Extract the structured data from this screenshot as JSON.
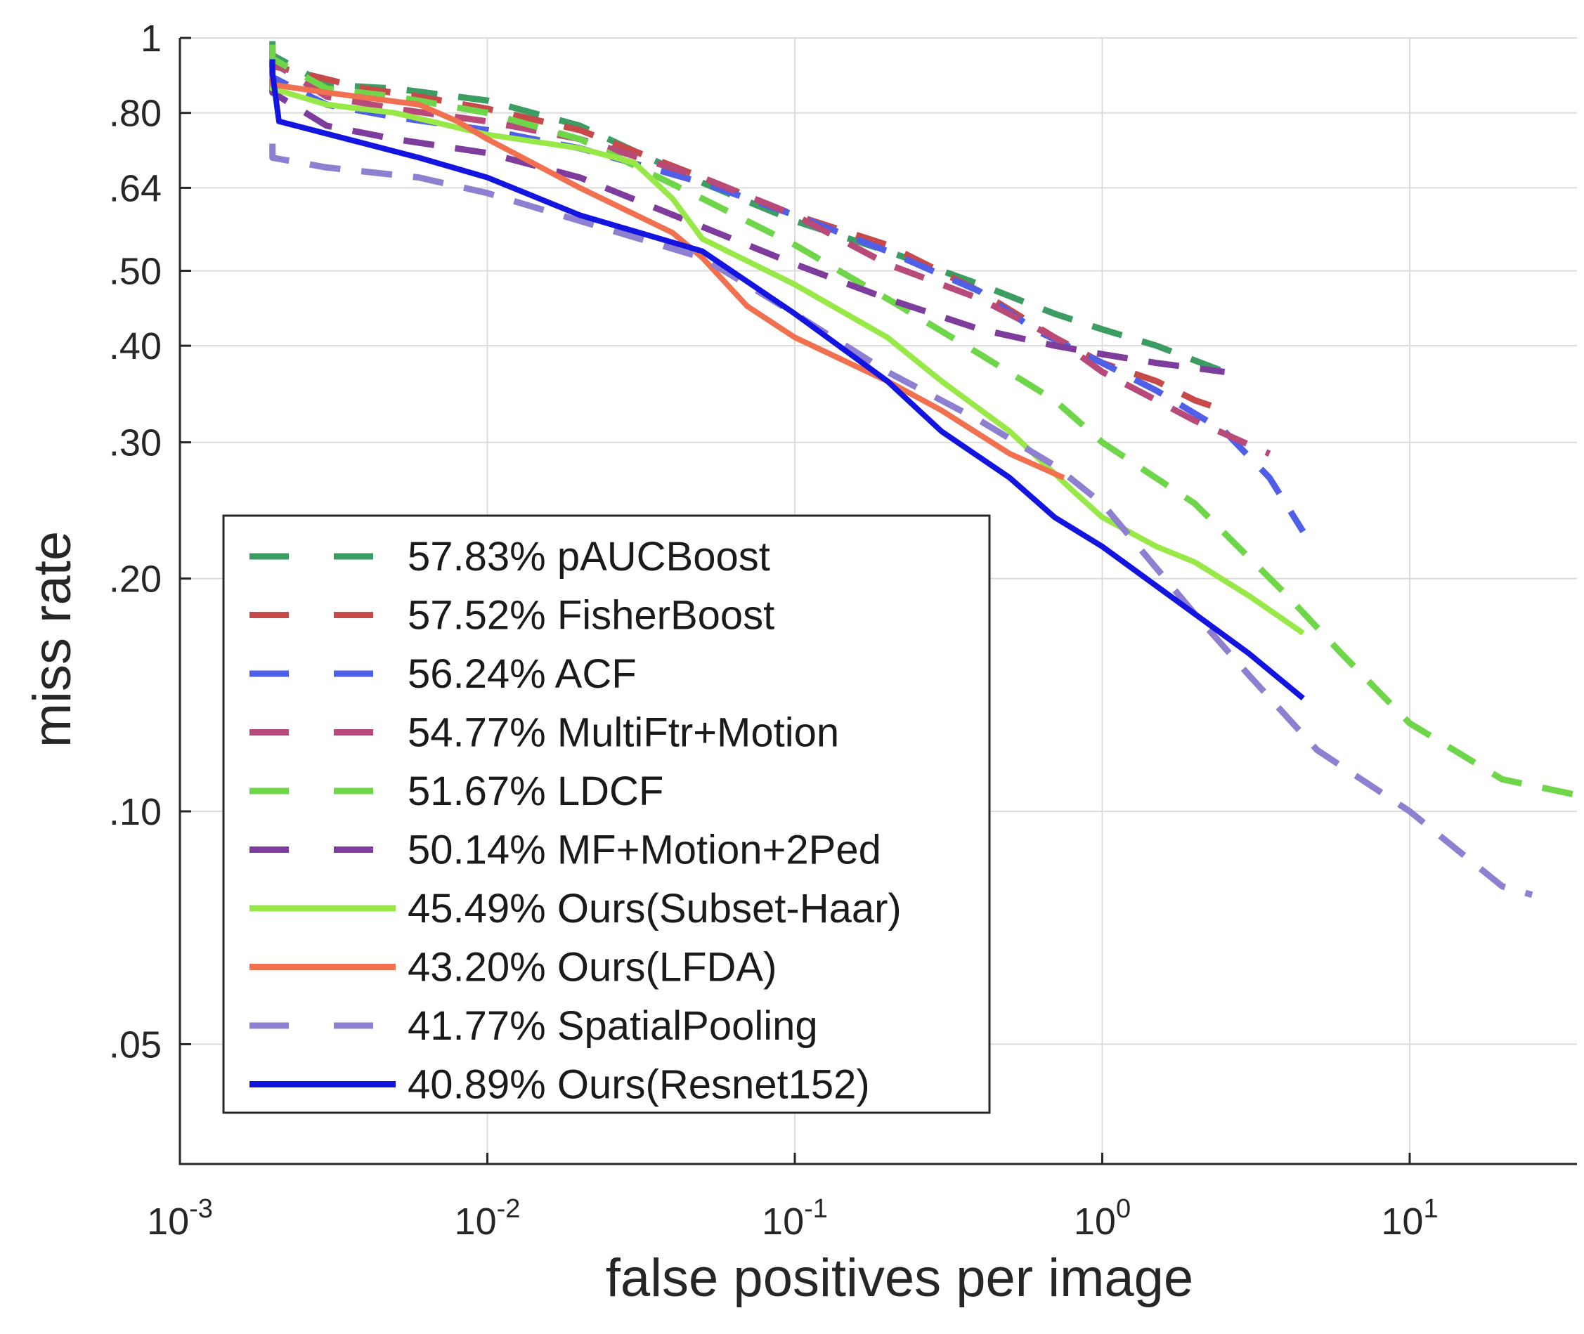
{
  "chart_data": {
    "type": "line",
    "xscale": "log",
    "yscale": "log",
    "xlabel": "false positives per image",
    "ylabel": "miss rate",
    "xlim": [
      0.001,
      35
    ],
    "ylim": [
      0.035,
      1
    ],
    "xticks": [
      {
        "value": 0.001,
        "base": "10",
        "exp": "-3"
      },
      {
        "value": 0.01,
        "base": "10",
        "exp": "-2"
      },
      {
        "value": 0.1,
        "base": "10",
        "exp": "-1"
      },
      {
        "value": 1,
        "base": "10",
        "exp": "0"
      },
      {
        "value": 10,
        "base": "10",
        "exp": "1"
      }
    ],
    "yticks": [
      {
        "value": 1,
        "label": "1"
      },
      {
        "value": 0.8,
        "label": ".80"
      },
      {
        "value": 0.64,
        "label": ".64"
      },
      {
        "value": 0.5,
        "label": ".50"
      },
      {
        "value": 0.4,
        "label": ".40"
      },
      {
        "value": 0.3,
        "label": ".30"
      },
      {
        "value": 0.2,
        "label": ".20"
      },
      {
        "value": 0.1,
        "label": ".10"
      },
      {
        "value": 0.05,
        "label": ".05"
      }
    ],
    "grid": true,
    "legend_position": "bottom-left",
    "series": [
      {
        "name": "pAUCBoost",
        "score": "57.83%",
        "color": "#3c9d63",
        "style": "dashed",
        "x": [
          0.002,
          0.003,
          0.005,
          0.01,
          0.02,
          0.05,
          0.1,
          0.2,
          0.4,
          0.7,
          1.0,
          1.5,
          2.5
        ],
        "y": [
          0.95,
          0.87,
          0.86,
          0.83,
          0.77,
          0.65,
          0.58,
          0.53,
          0.48,
          0.44,
          0.42,
          0.4,
          0.37
        ]
      },
      {
        "name": "FisherBoost",
        "score": "57.52%",
        "color": "#c74a4a",
        "style": "dashed",
        "x": [
          0.002,
          0.004,
          0.006,
          0.01,
          0.02,
          0.05,
          0.1,
          0.2,
          0.4,
          0.7,
          1.0,
          1.5,
          2.0,
          2.5
        ],
        "y": [
          0.92,
          0.86,
          0.84,
          0.81,
          0.76,
          0.66,
          0.59,
          0.54,
          0.47,
          0.41,
          0.38,
          0.36,
          0.34,
          0.33
        ]
      },
      {
        "name": "ACF",
        "score": "56.24%",
        "color": "#4f5fe8",
        "style": "dashed",
        "x": [
          0.002,
          0.003,
          0.005,
          0.01,
          0.02,
          0.05,
          0.1,
          0.2,
          0.4,
          0.6,
          1.0,
          1.5,
          2.5,
          3.5,
          4.5
        ],
        "y": [
          0.89,
          0.82,
          0.79,
          0.76,
          0.72,
          0.65,
          0.59,
          0.53,
          0.47,
          0.42,
          0.38,
          0.35,
          0.31,
          0.27,
          0.23
        ]
      },
      {
        "name": "MultiFtr+Motion",
        "score": "54.77%",
        "color": "#b84a7a",
        "style": "dashed",
        "x": [
          0.002,
          0.003,
          0.005,
          0.01,
          0.02,
          0.05,
          0.1,
          0.2,
          0.4,
          0.7,
          1.0,
          1.5,
          2.0,
          3.5
        ],
        "y": [
          0.93,
          0.84,
          0.81,
          0.78,
          0.74,
          0.66,
          0.59,
          0.51,
          0.46,
          0.41,
          0.37,
          0.34,
          0.32,
          0.29
        ]
      },
      {
        "name": "LDCF",
        "score": "51.67%",
        "color": "#6fd64a",
        "style": "dashed",
        "x": [
          0.002,
          0.003,
          0.005,
          0.01,
          0.02,
          0.05,
          0.1,
          0.2,
          0.4,
          0.7,
          1.0,
          2.0,
          4.0,
          6.0,
          10.0,
          20.0,
          35.0
        ],
        "y": [
          0.94,
          0.86,
          0.84,
          0.8,
          0.74,
          0.62,
          0.54,
          0.46,
          0.39,
          0.34,
          0.3,
          0.25,
          0.19,
          0.16,
          0.13,
          0.11,
          0.105
        ]
      },
      {
        "name": "MF+Motion+2Ped",
        "score": "50.14%",
        "color": "#7e3c9c",
        "style": "dashed",
        "x": [
          0.002,
          0.003,
          0.005,
          0.01,
          0.02,
          0.05,
          0.1,
          0.2,
          0.4,
          0.7,
          1.0,
          1.5,
          2.5
        ],
        "y": [
          0.85,
          0.77,
          0.74,
          0.71,
          0.66,
          0.57,
          0.51,
          0.46,
          0.42,
          0.4,
          0.39,
          0.38,
          0.37
        ]
      },
      {
        "name": "Ours(Subset-Haar)",
        "score": "45.49%",
        "color": "#98e848",
        "style": "solid",
        "x": [
          0.002,
          0.003,
          0.005,
          0.01,
          0.02,
          0.03,
          0.04,
          0.05,
          0.1,
          0.2,
          0.3,
          0.5,
          0.8,
          1.0,
          1.5,
          2.0,
          3.0,
          4.5
        ],
        "y": [
          0.86,
          0.82,
          0.8,
          0.75,
          0.72,
          0.69,
          0.62,
          0.55,
          0.48,
          0.41,
          0.36,
          0.31,
          0.26,
          0.24,
          0.22,
          0.21,
          0.19,
          0.17
        ]
      },
      {
        "name": "Ours(LFDA)",
        "score": "43.20%",
        "color": "#f07050",
        "style": "solid",
        "x": [
          0.002,
          0.003,
          0.006,
          0.008,
          0.01,
          0.02,
          0.04,
          0.05,
          0.07,
          0.1,
          0.2,
          0.3,
          0.5,
          0.75
        ],
        "y": [
          0.87,
          0.85,
          0.82,
          0.78,
          0.74,
          0.64,
          0.56,
          0.52,
          0.45,
          0.41,
          0.36,
          0.33,
          0.29,
          0.27
        ]
      },
      {
        "name": "SpatialPooling",
        "score": "41.77%",
        "color": "#8f7fd0",
        "style": "dashed",
        "x": [
          0.002,
          0.003,
          0.006,
          0.01,
          0.02,
          0.05,
          0.1,
          0.2,
          0.4,
          0.7,
          1.0,
          2.0,
          3.0,
          5.0,
          10.0,
          20.0,
          25.0
        ],
        "y": [
          0.7,
          0.68,
          0.66,
          0.63,
          0.58,
          0.52,
          0.44,
          0.37,
          0.32,
          0.28,
          0.25,
          0.18,
          0.15,
          0.12,
          0.1,
          0.08,
          0.078
        ]
      },
      {
        "name": "Ours(Resnet152)",
        "score": "40.89%",
        "color": "#1414e0",
        "style": "solid",
        "x": [
          0.002,
          0.0021,
          0.004,
          0.006,
          0.01,
          0.02,
          0.05,
          0.1,
          0.2,
          0.3,
          0.5,
          0.7,
          1.0,
          2.0,
          3.0,
          4.5
        ],
        "y": [
          0.9,
          0.78,
          0.73,
          0.7,
          0.66,
          0.59,
          0.53,
          0.44,
          0.36,
          0.31,
          0.27,
          0.24,
          0.22,
          0.18,
          0.16,
          0.14
        ]
      }
    ]
  }
}
